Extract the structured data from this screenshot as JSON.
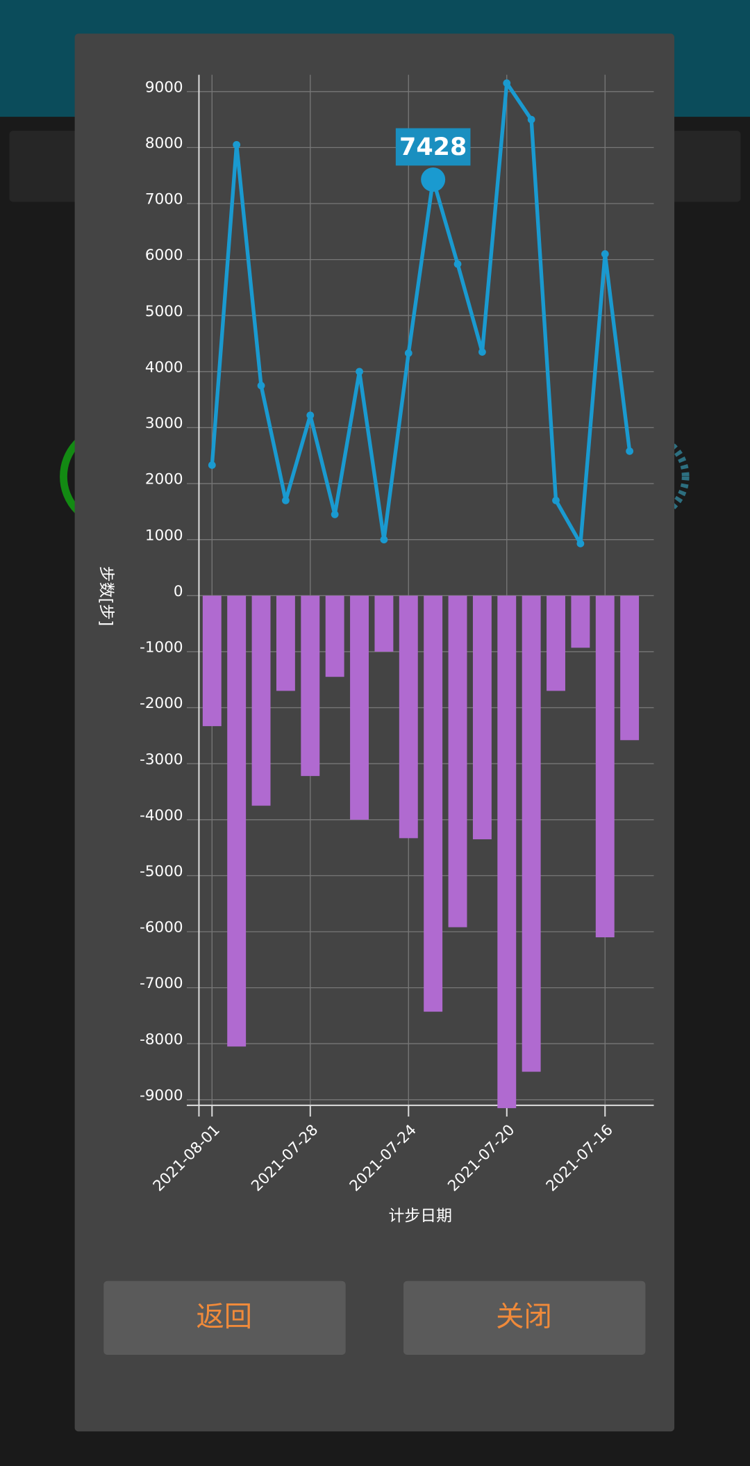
{
  "chart_data": {
    "type": "line-bar",
    "x_label": "计步日期",
    "y_label": "步数[步]",
    "categories": [
      "2021-08-01",
      null,
      null,
      null,
      "2021-07-28",
      null,
      null,
      null,
      "2021-07-24",
      null,
      null,
      null,
      "2021-07-20",
      null,
      null,
      null,
      "2021-07-16",
      null
    ],
    "series": [
      {
        "type": "line",
        "color": "#1a9ad0",
        "values": [
          2330,
          8050,
          3750,
          1700,
          3220,
          1450,
          4000,
          1000,
          4330,
          7428,
          5920,
          4350,
          9150,
          8500,
          1700,
          930,
          6100,
          2580
        ]
      },
      {
        "type": "bar",
        "color": "#b06ad0",
        "values": [
          -2330,
          -8050,
          -3750,
          -1700,
          -3220,
          -1450,
          -4000,
          -1000,
          -4330,
          -7428,
          -5920,
          -4350,
          -9150,
          -8500,
          -1700,
          -930,
          -6100,
          -2580
        ]
      }
    ],
    "selected_index": 9,
    "ylim": [
      -9100,
      9300
    ],
    "yticks": [
      -9000,
      -8000,
      -7000,
      -6000,
      -5000,
      -4000,
      -3000,
      -2000,
      -1000,
      0,
      1000,
      2000,
      3000,
      4000,
      5000,
      6000,
      7000,
      8000,
      9000
    ],
    "grid": true
  },
  "buttons": [
    "返回",
    "关闭"
  ]
}
